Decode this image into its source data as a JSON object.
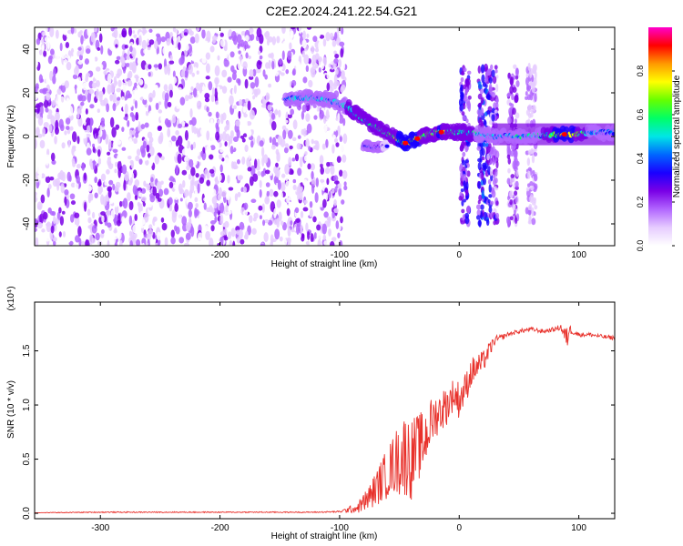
{
  "title": "C2E2.2024.241.22.54.G21",
  "chart_data": [
    {
      "type": "heatmap",
      "xlabel": "Height of straight line (km)",
      "ylabel": "Frequency (Hz)",
      "xlim": [
        -355,
        130
      ],
      "ylim": [
        -50,
        50
      ],
      "xticks": [
        -300,
        -200,
        -100,
        0,
        100
      ],
      "yticks": [
        -40,
        -20,
        0,
        20,
        40
      ],
      "colorbar": {
        "label": "Normalized spectral amplitude",
        "range": [
          0,
          1
        ],
        "ticks": [
          "0.0",
          "0.2",
          "0.4",
          "0.6",
          "0.8"
        ],
        "colors": [
          "#ffffff",
          "#e6ccff",
          "#b266ff",
          "#7a00e6",
          "#1a00ff",
          "#0066ff",
          "#00e6e6",
          "#00ff66",
          "#66ff00",
          "#ffff00",
          "#ff9900",
          "#ff0000",
          "#ff00cc"
        ]
      },
      "noise_region": {
        "x": [
          -355,
          -95
        ],
        "level": "low"
      },
      "signal_track": [
        {
          "x": -145,
          "freq": 17,
          "amp": 0.45
        },
        {
          "x": -125,
          "freq": 18,
          "amp": 0.55
        },
        {
          "x": -110,
          "freq": 17,
          "amp": 0.5
        },
        {
          "x": -95,
          "freq": 14,
          "amp": 0.55
        },
        {
          "x": -85,
          "freq": 10,
          "amp": 0.6
        },
        {
          "x": -75,
          "freq": 6,
          "amp": 0.6
        },
        {
          "x": -65,
          "freq": 3,
          "amp": 0.65
        },
        {
          "x": -55,
          "freq": 0,
          "amp": 0.7
        },
        {
          "x": -45,
          "freq": -3,
          "amp": 0.8
        },
        {
          "x": -35,
          "freq": -1,
          "amp": 0.75
        },
        {
          "x": -25,
          "freq": 1,
          "amp": 0.7
        },
        {
          "x": -15,
          "freq": 2,
          "amp": 0.75
        },
        {
          "x": -5,
          "freq": 2,
          "amp": 0.65
        },
        {
          "x": 5,
          "freq": 2,
          "amp": 0.6
        },
        {
          "x": 15,
          "freq": 1,
          "amp": 0.55
        },
        {
          "x": 30,
          "freq": 0,
          "amp": 0.5
        },
        {
          "x": 50,
          "freq": 0,
          "amp": 0.55
        },
        {
          "x": 70,
          "freq": 0.5,
          "amp": 0.55
        },
        {
          "x": 88,
          "freq": 1,
          "amp": 0.9
        },
        {
          "x": 110,
          "freq": 1.5,
          "amp": 0.5
        },
        {
          "x": 130,
          "freq": 2,
          "amp": 0.5
        }
      ],
      "secondary_track": [
        {
          "x": -80,
          "freq": -4,
          "amp": 0.4
        },
        {
          "x": -70,
          "freq": -5,
          "amp": 0.4
        },
        {
          "x": -60,
          "freq": -4,
          "amp": 0.35
        }
      ],
      "vertical_bands": [
        {
          "x": 5,
          "amp": 0.35
        },
        {
          "x": 20,
          "amp": 0.4
        },
        {
          "x": 28,
          "amp": 0.3
        },
        {
          "x": 45,
          "amp": 0.25
        },
        {
          "x": 60,
          "amp": 0.2
        }
      ]
    },
    {
      "type": "line",
      "xlabel": "Height of straight line (km)",
      "ylabel": "SNR (10 * v/v)",
      "multiplier": "(x10⁴)",
      "xlim": [
        -355,
        130
      ],
      "ylim": [
        -0.05,
        1.95
      ],
      "xticks": [
        -300,
        -200,
        -100,
        0,
        100
      ],
      "yticks": [
        "0.0",
        "0.5",
        "1.0",
        "1.5"
      ],
      "series": [
        {
          "color": "#e8302a",
          "x": [
            -355,
            -300,
            -200,
            -120,
            -100,
            -85,
            -75,
            -65,
            -55,
            -50,
            -45,
            -40,
            -35,
            -30,
            -25,
            -20,
            -15,
            -10,
            -5,
            0,
            5,
            10,
            15,
            20,
            25,
            30,
            35,
            40,
            50,
            60,
            70,
            80,
            85,
            90,
            92,
            95,
            100,
            110,
            120,
            130
          ],
          "y": [
            0.005,
            0.01,
            0.01,
            0.01,
            0.015,
            0.05,
            0.15,
            0.3,
            0.45,
            0.5,
            0.55,
            0.5,
            0.6,
            0.65,
            0.8,
            0.9,
            0.95,
            1.0,
            1.1,
            1.05,
            1.15,
            1.3,
            1.35,
            1.4,
            1.5,
            1.6,
            1.62,
            1.65,
            1.68,
            1.7,
            1.68,
            1.7,
            1.72,
            1.6,
            1.7,
            1.68,
            1.65,
            1.65,
            1.63,
            1.62
          ],
          "noise": [
            0.002,
            0.005,
            0.005,
            0.005,
            0.008,
            0.05,
            0.12,
            0.2,
            0.28,
            0.35,
            0.4,
            0.38,
            0.32,
            0.3,
            0.25,
            0.2,
            0.2,
            0.18,
            0.15,
            0.18,
            0.15,
            0.14,
            0.12,
            0.1,
            0.08,
            0.04,
            0.03,
            0.02,
            0.02,
            0.02,
            0.02,
            0.02,
            0.03,
            0.12,
            0.05,
            0.03,
            0.02,
            0.02,
            0.02,
            0.02
          ]
        }
      ]
    }
  ]
}
